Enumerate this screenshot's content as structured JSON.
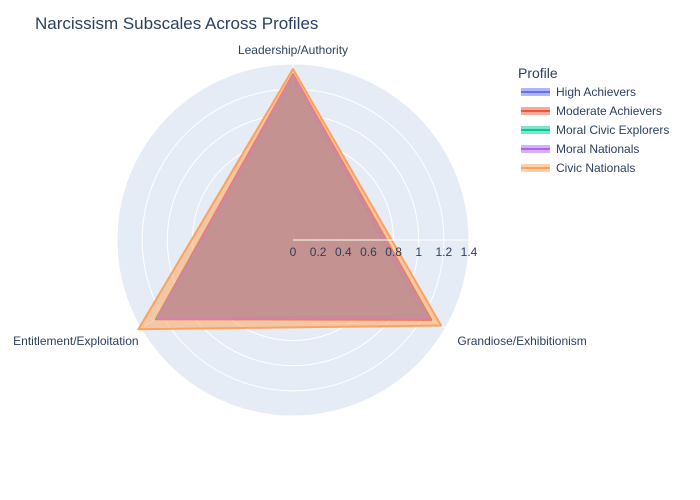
{
  "chart_data": {
    "type": "radar",
    "title": "Narcissism Subscales Across Profiles",
    "axes": [
      "Leadership/Authority",
      "Grandiose/Exhibitionism",
      "Entitlement/Exploitation"
    ],
    "radial_range": [
      0,
      1.4
    ],
    "radial_ticks": [
      "0",
      "0.2",
      "0.4",
      "0.6",
      "0.8",
      "1",
      "1.2",
      "1.4"
    ],
    "grid": true,
    "legend_title": "Profile",
    "legend_position": "top-right",
    "series": [
      {
        "name": "High Achievers",
        "color": "#636efa",
        "values": [
          1.3,
          1.2,
          1.25
        ]
      },
      {
        "name": "Moderate Achievers",
        "color": "#EF553B",
        "values": [
          1.32,
          1.27,
          1.26
        ]
      },
      {
        "name": "Moral Civic Explorers",
        "color": "#00cc96",
        "values": [
          1.3,
          1.25,
          1.25
        ]
      },
      {
        "name": "Moral Nationals",
        "color": "#ab63fa",
        "values": [
          1.31,
          1.24,
          1.24
        ]
      },
      {
        "name": "Civic Nationals",
        "color": "#FFA15A",
        "values": [
          1.36,
          1.36,
          1.42
        ]
      }
    ]
  }
}
